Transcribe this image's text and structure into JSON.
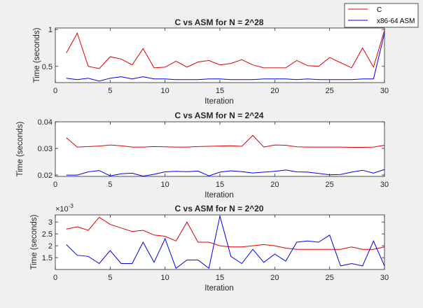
{
  "legend": {
    "entries": [
      {
        "label": "C",
        "color": "#e00000"
      },
      {
        "label": "x86-64 ASM",
        "color": "#0000ee"
      }
    ]
  },
  "chart_data": [
    {
      "type": "line",
      "title": "C vs ASM for N = 2^28",
      "xlabel": "Iteration",
      "ylabel": "Time (seconds)",
      "xlim": [
        0,
        30
      ],
      "ylim": [
        0.28,
        1.02
      ],
      "xticks": [
        0,
        5,
        10,
        15,
        20,
        25,
        30
      ],
      "xticklabels": [
        "0",
        "5",
        "10",
        "15",
        "20",
        "25",
        "30"
      ],
      "yticks": [
        0.5,
        1
      ],
      "yticklabels": [
        "0.5",
        "1"
      ],
      "exponent": "",
      "x": [
        1,
        2,
        3,
        4,
        5,
        6,
        7,
        8,
        9,
        10,
        11,
        12,
        13,
        14,
        15,
        16,
        17,
        18,
        19,
        20,
        21,
        22,
        23,
        24,
        25,
        26,
        27,
        28,
        29,
        30
      ],
      "series": [
        {
          "name": "C",
          "color": "#e00000",
          "values": [
            0.68,
            0.95,
            0.5,
            0.47,
            0.63,
            0.6,
            0.52,
            0.74,
            0.48,
            0.49,
            0.57,
            0.49,
            0.56,
            0.58,
            0.52,
            0.54,
            0.59,
            0.52,
            0.48,
            0.48,
            0.48,
            0.58,
            0.51,
            0.5,
            0.62,
            0.55,
            0.48,
            0.75,
            0.49,
            0.99
          ]
        },
        {
          "name": "x86-64 ASM",
          "color": "#0000ee",
          "values": [
            0.34,
            0.32,
            0.34,
            0.3,
            0.34,
            0.36,
            0.33,
            0.36,
            0.33,
            0.33,
            0.32,
            0.32,
            0.32,
            0.33,
            0.33,
            0.32,
            0.32,
            0.32,
            0.33,
            0.33,
            0.33,
            0.32,
            0.33,
            0.32,
            0.32,
            0.32,
            0.32,
            0.33,
            0.33,
            0.95
          ]
        }
      ]
    },
    {
      "type": "line",
      "title": "C vs ASM for N = 2^24",
      "xlabel": "Iteration",
      "ylabel": "Time (seconds)",
      "xlim": [
        0,
        30
      ],
      "ylim": [
        0.0195,
        0.04
      ],
      "xticks": [
        0,
        5,
        10,
        15,
        20,
        25,
        30
      ],
      "xticklabels": [
        "0",
        "5",
        "10",
        "15",
        "20",
        "25",
        "30"
      ],
      "yticks": [
        0.02,
        0.03,
        0.04
      ],
      "yticklabels": [
        "0.02",
        "0.03",
        "0.04"
      ],
      "exponent": "",
      "x": [
        1,
        2,
        3,
        4,
        5,
        6,
        7,
        8,
        9,
        10,
        11,
        12,
        13,
        14,
        15,
        16,
        17,
        18,
        19,
        20,
        21,
        22,
        23,
        24,
        25,
        26,
        27,
        28,
        29,
        30
      ],
      "series": [
        {
          "name": "C",
          "color": "#e00000",
          "values": [
            0.034,
            0.0305,
            0.0307,
            0.0309,
            0.0313,
            0.031,
            0.0305,
            0.0305,
            0.0307,
            0.0306,
            0.0305,
            0.0305,
            0.0307,
            0.0308,
            0.0309,
            0.031,
            0.0308,
            0.0349,
            0.0305,
            0.0313,
            0.0312,
            0.0306,
            0.0305,
            0.0305,
            0.0305,
            0.0305,
            0.0304,
            0.0304,
            0.0305,
            0.0312
          ]
        },
        {
          "name": "x86-64 ASM",
          "color": "#0000ee",
          "values": [
            0.02,
            0.02,
            0.0212,
            0.0217,
            0.0197,
            0.0205,
            0.0207,
            0.0196,
            0.0203,
            0.0212,
            0.0214,
            0.0213,
            0.0215,
            0.0197,
            0.0211,
            0.0216,
            0.0213,
            0.0208,
            0.0211,
            0.0214,
            0.0219,
            0.0212,
            0.0211,
            0.0206,
            0.0201,
            0.0202,
            0.0211,
            0.0218,
            0.0207,
            0.0221
          ]
        }
      ]
    },
    {
      "type": "line",
      "title": "C vs ASM for N = 2^20",
      "xlabel": "Iteration",
      "ylabel": "Time (seconds)",
      "xlim": [
        0,
        30
      ],
      "ylim": [
        1.0,
        3.3
      ],
      "xticks": [
        0,
        5,
        10,
        15,
        20,
        25,
        30
      ],
      "xticklabels": [
        "0",
        "5",
        "10",
        "15",
        "20",
        "25",
        "30"
      ],
      "yticks": [
        1.5,
        2,
        2.5,
        3
      ],
      "yticklabels": [
        "1.5",
        "2",
        "2.5",
        "3"
      ],
      "exponent": "×10",
      "exponent_power": "-3",
      "x": [
        1,
        2,
        3,
        4,
        5,
        6,
        7,
        8,
        9,
        10,
        11,
        12,
        13,
        14,
        15,
        16,
        17,
        18,
        19,
        20,
        21,
        22,
        23,
        24,
        25,
        26,
        27,
        28,
        29,
        30
      ],
      "series": [
        {
          "name": "C",
          "color": "#e00000",
          "values": [
            2.7,
            2.8,
            2.65,
            3.2,
            2.9,
            2.75,
            2.6,
            2.65,
            2.45,
            2.4,
            2.2,
            3.0,
            2.15,
            2.15,
            2.0,
            1.95,
            1.95,
            2.0,
            2.05,
            2.0,
            1.9,
            1.85,
            1.85,
            1.85,
            1.85,
            1.85,
            1.95,
            1.85,
            1.85,
            1.95
          ]
        },
        {
          "name": "x86-64 ASM",
          "color": "#0000ee",
          "values": [
            2.05,
            1.6,
            1.55,
            1.25,
            1.8,
            1.25,
            1.25,
            2.15,
            1.3,
            2.3,
            1.05,
            1.4,
            1.4,
            1.05,
            3.25,
            1.55,
            1.25,
            1.85,
            1.3,
            1.65,
            1.35,
            2.15,
            2.2,
            2.15,
            2.45,
            1.15,
            1.25,
            1.15,
            2.2,
            1.15
          ]
        }
      ]
    }
  ]
}
